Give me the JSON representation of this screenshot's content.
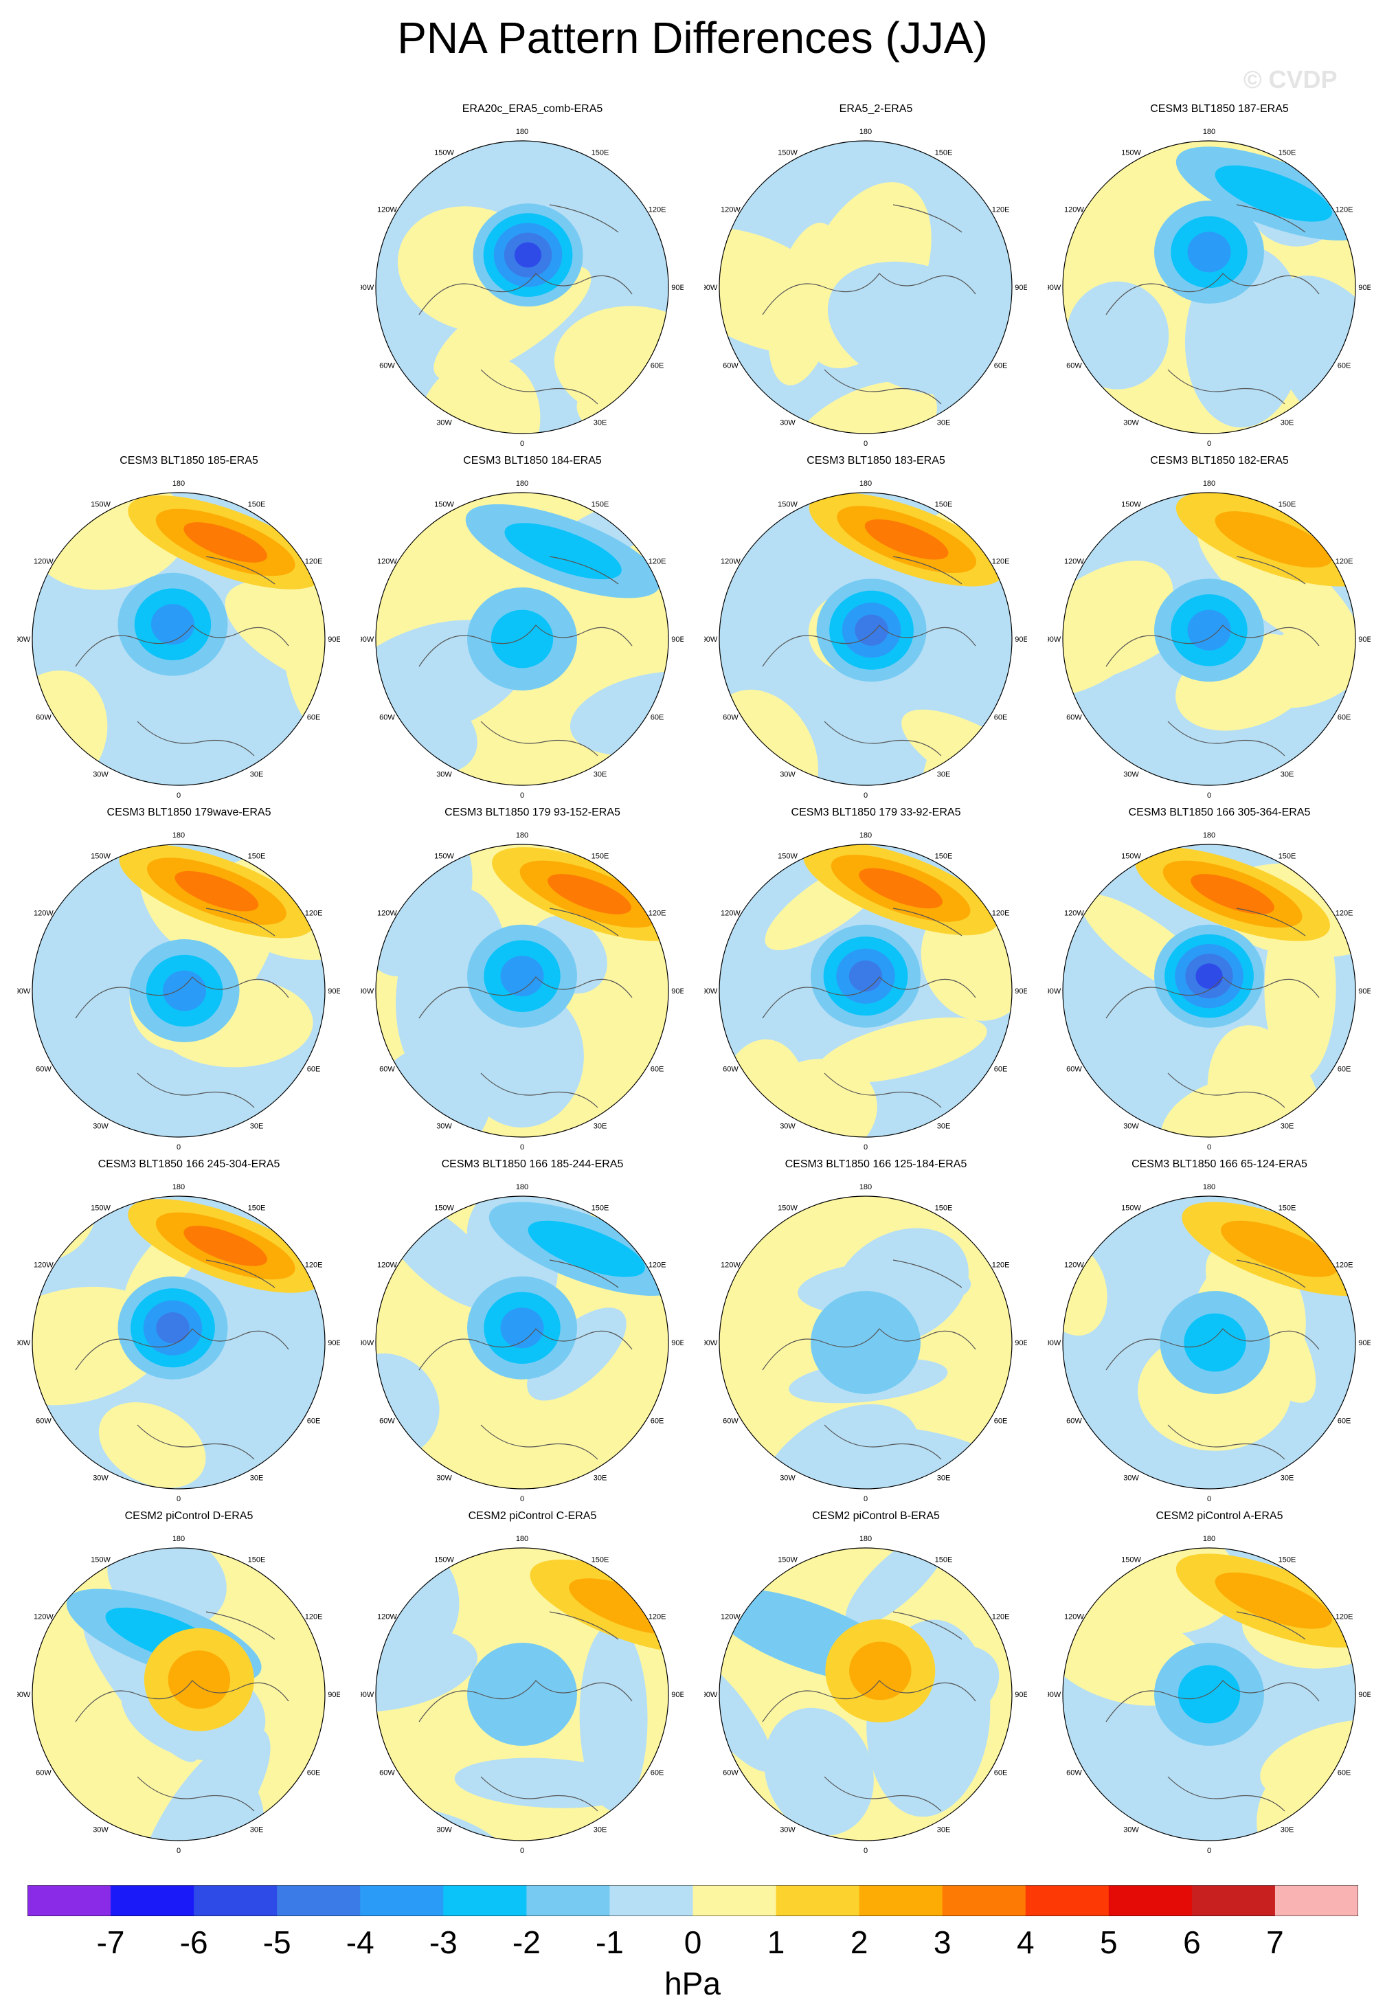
{
  "title": "PNA Pattern Differences (JJA)",
  "watermark": "© CVDP",
  "longitude_labels": [
    "180",
    "150E",
    "120E",
    "90E",
    "60E",
    "30E",
    "0",
    "30W",
    "60W",
    "90W",
    "120W",
    "150W"
  ],
  "panels": [
    {
      "title": "ERA20c_ERA5_comb-ERA5",
      "pattern": {
        "pac": 0,
        "pacPos": [
          0.28,
          0.25
        ],
        "cen": -5,
        "cenPos": [
          0.52,
          0.39
        ],
        "bg": "blue"
      }
    },
    {
      "title": "ERA5_2-ERA5",
      "pattern": {
        "pac": 0,
        "pacPos": [
          0.3,
          0.25
        ],
        "cen": 0,
        "cenPos": [
          0.5,
          0.5
        ],
        "bg": "mixed"
      }
    },
    {
      "title": "CESM3 BLT1850 187-ERA5",
      "pattern": {
        "pac": -2,
        "pacPos": [
          0.72,
          0.18
        ],
        "cen": -3,
        "cenPos": [
          0.5,
          0.38
        ],
        "bg": "yellow"
      }
    },
    {
      "title": "CESM3 BLT1850 185-ERA5",
      "pattern": {
        "pac": 3,
        "pacPos": [
          0.66,
          0.17
        ],
        "cen": -3,
        "cenPos": [
          0.48,
          0.45
        ],
        "bg": "blue"
      }
    },
    {
      "title": "CESM3 BLT1850 184-ERA5",
      "pattern": {
        "pac": -2,
        "pacPos": [
          0.64,
          0.2
        ],
        "cen": -2,
        "cenPos": [
          0.5,
          0.5
        ],
        "bg": "yellow"
      }
    },
    {
      "title": "CESM3 BLT1850 183-ERA5",
      "pattern": {
        "pac": 3,
        "pacPos": [
          0.64,
          0.16
        ],
        "cen": -4,
        "cenPos": [
          0.52,
          0.47
        ],
        "bg": "blue"
      }
    },
    {
      "title": "CESM3 BLT1850 182-ERA5",
      "pattern": {
        "pac": 2,
        "pacPos": [
          0.72,
          0.16
        ],
        "cen": -3,
        "cenPos": [
          0.5,
          0.47
        ],
        "bg": "blue"
      }
    },
    {
      "title": "CESM3 BLT1850 179wave-ERA5",
      "pattern": {
        "pac": 3,
        "pacPos": [
          0.63,
          0.16
        ],
        "cen": -3,
        "cenPos": [
          0.52,
          0.5
        ],
        "bg": "blue"
      }
    },
    {
      "title": "CESM3 BLT1850 179 93-152-ERA5",
      "pattern": {
        "pac": 3,
        "pacPos": [
          0.73,
          0.17
        ],
        "cen": -3,
        "cenPos": [
          0.5,
          0.45
        ],
        "bg": "yellow"
      }
    },
    {
      "title": "CESM3 BLT1850 179 33-92-ERA5",
      "pattern": {
        "pac": 3,
        "pacPos": [
          0.62,
          0.15
        ],
        "cen": -4,
        "cenPos": [
          0.5,
          0.45
        ],
        "bg": "blue"
      }
    },
    {
      "title": "CESM3 BLT1850 166 305-364-ERA5",
      "pattern": {
        "pac": 3,
        "pacPos": [
          0.58,
          0.17
        ],
        "cen": -5,
        "cenPos": [
          0.5,
          0.45
        ],
        "bg": "blue"
      }
    },
    {
      "title": "CESM3 BLT1850 166 245-304-ERA5",
      "pattern": {
        "pac": 3,
        "pacPos": [
          0.66,
          0.17
        ],
        "cen": -4,
        "cenPos": [
          0.48,
          0.45
        ],
        "bg": "blue"
      }
    },
    {
      "title": "CESM3 BLT1850 166 185-244-ERA5",
      "pattern": {
        "pac": -2,
        "pacPos": [
          0.72,
          0.18
        ],
        "cen": -3,
        "cenPos": [
          0.5,
          0.45
        ],
        "bg": "yellow"
      }
    },
    {
      "title": "CESM3 BLT1850 166 125-184-ERA5",
      "pattern": {
        "pac": 0,
        "pacPos": [
          0.7,
          0.2
        ],
        "cen": -1,
        "cenPos": [
          0.5,
          0.5
        ],
        "bg": "yellow"
      }
    },
    {
      "title": "CESM3 BLT1850 166 65-124-ERA5",
      "pattern": {
        "pac": 2,
        "pacPos": [
          0.74,
          0.18
        ],
        "cen": -2,
        "cenPos": [
          0.52,
          0.5
        ],
        "bg": "blue"
      }
    },
    {
      "title": "CESM2 piControl D-ERA5",
      "pattern": {
        "pac": -2,
        "pacPos": [
          0.45,
          0.3
        ],
        "cen": 2,
        "cenPos": [
          0.57,
          0.45
        ],
        "bg": "yellow"
      }
    },
    {
      "title": "CESM2 piControl C-ERA5",
      "pattern": {
        "pac": 2,
        "pacPos": [
          0.86,
          0.2
        ],
        "cen": -1,
        "cenPos": [
          0.5,
          0.5
        ],
        "bg": "yellow"
      }
    },
    {
      "title": "CESM2 piControl B-ERA5",
      "pattern": {
        "pac": -1,
        "pacPos": [
          0.3,
          0.3
        ],
        "cen": 2,
        "cenPos": [
          0.55,
          0.42
        ],
        "bg": "yellow"
      }
    },
    {
      "title": "CESM2 piControl A-ERA5",
      "pattern": {
        "pac": 2,
        "pacPos": [
          0.72,
          0.18
        ],
        "cen": -2,
        "cenPos": [
          0.5,
          0.5
        ],
        "bg": "blue"
      }
    }
  ],
  "colorbar": {
    "ticks": [
      "-7",
      "-6",
      "-5",
      "-4",
      "-3",
      "-2",
      "-1",
      "0",
      "1",
      "2",
      "3",
      "4",
      "5",
      "6",
      "7"
    ],
    "colors": [
      "#8a2be8",
      "#1a1af8",
      "#2e4be8",
      "#3a7be8",
      "#2b9bf8",
      "#0bc3f8",
      "#77cbf3",
      "#b6dff5",
      "#fdf6a1",
      "#fcd22f",
      "#fdab05",
      "#fd7a05",
      "#fd3a05",
      "#e40a05",
      "#c81f1f",
      "#fab3b3"
    ],
    "units": "hPa"
  }
}
